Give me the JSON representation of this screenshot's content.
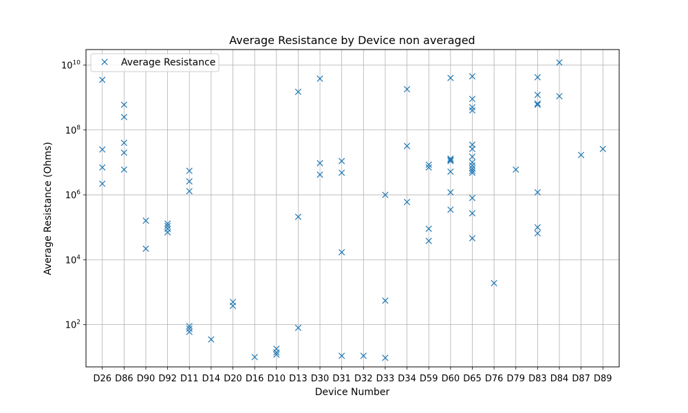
{
  "chart_data": {
    "type": "scatter",
    "title": "Average Resistance by Device  non averaged",
    "xlabel": "Device Number",
    "ylabel": "Average Resistance (Ohms)",
    "y_scale": "log",
    "ylim": [
      5,
      30000000000.0
    ],
    "y_ticks": [
      {
        "value": 100,
        "base": "10",
        "exp": "2"
      },
      {
        "value": 10000,
        "base": "10",
        "exp": "4"
      },
      {
        "value": 1000000,
        "base": "10",
        "exp": "6"
      },
      {
        "value": 100000000,
        "base": "10",
        "exp": "8"
      },
      {
        "value": 10000000000,
        "base": "10",
        "exp": "10"
      }
    ],
    "grid": true,
    "legend_position": "top-left",
    "marker": "x",
    "color": "#1f77b4",
    "categories": [
      "D26",
      "D86",
      "D90",
      "D92",
      "D11",
      "D14",
      "D20",
      "D16",
      "D10",
      "D13",
      "D30",
      "D31",
      "D32",
      "D33",
      "D34",
      "D59",
      "D60",
      "D65",
      "D76",
      "D79",
      "D83",
      "D84",
      "D87",
      "D89"
    ],
    "series": [
      {
        "name": "Average Resistance",
        "points": [
          {
            "x": "D26",
            "y": 3500000000.0
          },
          {
            "x": "D26",
            "y": 25000000.0
          },
          {
            "x": "D26",
            "y": 7000000.0
          },
          {
            "x": "D26",
            "y": 2200000.0
          },
          {
            "x": "D86",
            "y": 600000000.0
          },
          {
            "x": "D86",
            "y": 250000000.0
          },
          {
            "x": "D86",
            "y": 40000000.0
          },
          {
            "x": "D86",
            "y": 20000000.0
          },
          {
            "x": "D86",
            "y": 6000000.0
          },
          {
            "x": "D90",
            "y": 160000.0
          },
          {
            "x": "D90",
            "y": 22000.0
          },
          {
            "x": "D92",
            "y": 130000.0
          },
          {
            "x": "D92",
            "y": 110000.0
          },
          {
            "x": "D92",
            "y": 90000.0
          },
          {
            "x": "D92",
            "y": 70000.0
          },
          {
            "x": "D11",
            "y": 5500000.0
          },
          {
            "x": "D11",
            "y": 2600000.0
          },
          {
            "x": "D11",
            "y": 1300000.0
          },
          {
            "x": "D11",
            "y": 90
          },
          {
            "x": "D11",
            "y": 75
          },
          {
            "x": "D11",
            "y": 60
          },
          {
            "x": "D14",
            "y": 35
          },
          {
            "x": "D20",
            "y": 500
          },
          {
            "x": "D20",
            "y": 380
          },
          {
            "x": "D16",
            "y": 10
          },
          {
            "x": "D10",
            "y": 18
          },
          {
            "x": "D10",
            "y": 14
          },
          {
            "x": "D10",
            "y": 12
          },
          {
            "x": "D13",
            "y": 1500000000.0
          },
          {
            "x": "D13",
            "y": 210000.0
          },
          {
            "x": "D13",
            "y": 80
          },
          {
            "x": "D30",
            "y": 3800000000.0
          },
          {
            "x": "D30",
            "y": 9500000.0
          },
          {
            "x": "D30",
            "y": 4200000.0
          },
          {
            "x": "D31",
            "y": 11000000.0
          },
          {
            "x": "D31",
            "y": 4800000.0
          },
          {
            "x": "D31",
            "y": 17000.0
          },
          {
            "x": "D31",
            "y": 11
          },
          {
            "x": "D32",
            "y": 11
          },
          {
            "x": "D33",
            "y": 1000000.0
          },
          {
            "x": "D33",
            "y": 550
          },
          {
            "x": "D33",
            "y": 9.5
          },
          {
            "x": "D34",
            "y": 1800000000.0
          },
          {
            "x": "D34",
            "y": 32000000.0
          },
          {
            "x": "D34",
            "y": 600000.0
          },
          {
            "x": "D59",
            "y": 8500000.0
          },
          {
            "x": "D59",
            "y": 7000000.0
          },
          {
            "x": "D59",
            "y": 90000.0
          },
          {
            "x": "D59",
            "y": 38000.0
          },
          {
            "x": "D60",
            "y": 4000000000.0
          },
          {
            "x": "D60",
            "y": 13000000.0
          },
          {
            "x": "D60",
            "y": 12000000.0
          },
          {
            "x": "D60",
            "y": 11000000.0
          },
          {
            "x": "D60",
            "y": 5200000.0
          },
          {
            "x": "D60",
            "y": 1200000.0
          },
          {
            "x": "D60",
            "y": 350000.0
          },
          {
            "x": "D65",
            "y": 4500000000.0
          },
          {
            "x": "D65",
            "y": 900000000.0
          },
          {
            "x": "D65",
            "y": 500000000.0
          },
          {
            "x": "D65",
            "y": 400000000.0
          },
          {
            "x": "D65",
            "y": 35000000.0
          },
          {
            "x": "D65",
            "y": 26000000.0
          },
          {
            "x": "D65",
            "y": 15000000.0
          },
          {
            "x": "D65",
            "y": 10000000.0
          },
          {
            "x": "D65",
            "y": 8000000.0
          },
          {
            "x": "D65",
            "y": 6500000.0
          },
          {
            "x": "D65",
            "y": 5500000.0
          },
          {
            "x": "D65",
            "y": 4800000.0
          },
          {
            "x": "D65",
            "y": 800000.0
          },
          {
            "x": "D65",
            "y": 270000.0
          },
          {
            "x": "D65",
            "y": 46000.0
          },
          {
            "x": "D76",
            "y": 1900
          },
          {
            "x": "D79",
            "y": 6000000.0
          },
          {
            "x": "D83",
            "y": 4200000000.0
          },
          {
            "x": "D83",
            "y": 1200000000.0
          },
          {
            "x": "D83",
            "y": 650000000.0
          },
          {
            "x": "D83",
            "y": 600000000.0
          },
          {
            "x": "D83",
            "y": 1200000.0
          },
          {
            "x": "D83",
            "y": 100000.0
          },
          {
            "x": "D83",
            "y": 65000.0
          },
          {
            "x": "D84",
            "y": 12000000000.0
          },
          {
            "x": "D84",
            "y": 1100000000.0
          },
          {
            "x": "D87",
            "y": 17000000.0
          },
          {
            "x": "D89",
            "y": 26000000.0
          }
        ]
      }
    ]
  }
}
